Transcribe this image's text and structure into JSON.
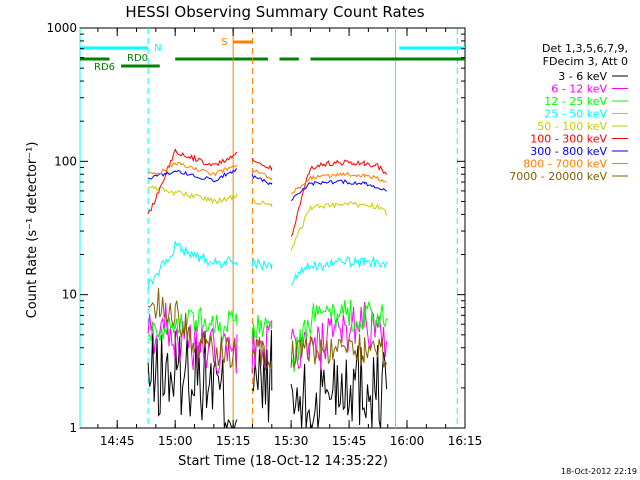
{
  "chart_data": {
    "type": "line",
    "title": "HESSI Observing Summary Count Rates",
    "xlabel": "Start Time (18-Oct-12 14:35:22)",
    "ylabel": "Count Rate (s⁻¹ detector⁻¹)",
    "timestamp": "18-Oct-2012 22:19",
    "yscale": "log",
    "ylim": [
      1,
      1000
    ],
    "xlim": [
      "14:35:22",
      "16:15"
    ],
    "x_ticks": [
      "14:45",
      "15:00",
      "15:15",
      "15:30",
      "15:45",
      "16:00",
      "16:15"
    ],
    "y_ticks": [
      "1",
      "10",
      "100",
      "1000"
    ],
    "legend_header": [
      "Det 1,3,5,6,7,9,",
      "FDecim 3, Att 0"
    ],
    "legend_position": "right",
    "gaps": [
      [
        "14:35:22",
        "14:53"
      ],
      [
        "15:16",
        "15:20"
      ],
      [
        "15:25",
        "15:30"
      ]
    ],
    "series": [
      {
        "name": "3 - 6 keV",
        "color": "#000000",
        "x": [
          "14:53",
          "15:00",
          "15:05",
          "15:10",
          "15:13",
          "15:16",
          "15:25",
          "15:30",
          "15:35",
          "15:40",
          "15:45",
          "15:49",
          "15:52",
          "15:55"
        ],
        "values": [
          2.3,
          2.6,
          2.7,
          2.2,
          1.5,
          1.4,
          2.5,
          1.6,
          1.3,
          2.2,
          2.4,
          2.1,
          2.0,
          2.1
        ]
      },
      {
        "name": "6 - 12 keV",
        "color": "#ff00ff",
        "x": [
          "14:53",
          "14:56",
          "14:58",
          "15:00",
          "15:05",
          "15:10",
          "15:16",
          "15:25",
          "15:30",
          "15:35",
          "15:40",
          "15:45",
          "15:49",
          "15:52",
          "15:55"
        ],
        "values": [
          5.0,
          5.5,
          6.5,
          4.5,
          4.0,
          3.7,
          3.5,
          4.3,
          4.2,
          3.7,
          4.5,
          5.5,
          7.0,
          4.8,
          4.2
        ]
      },
      {
        "name": "12 - 25 keV",
        "color": "#00ff00",
        "x": [
          "14:53",
          "15:00",
          "15:05",
          "15:10",
          "15:16",
          "15:25",
          "15:30",
          "15:35",
          "15:40",
          "15:45",
          "15:49",
          "15:52",
          "15:55"
        ],
        "values": [
          5.2,
          6.3,
          6.5,
          6.0,
          5.8,
          5.8,
          3.0,
          6.5,
          6.8,
          7.0,
          7.0,
          6.8,
          6.5
        ]
      },
      {
        "name": "25 - 50 keV",
        "color": "#00ffff",
        "x": [
          "14:53",
          "15:00",
          "15:05",
          "15:10",
          "15:16",
          "15:25",
          "15:30",
          "15:35",
          "15:40",
          "15:45",
          "15:49",
          "15:52",
          "15:55"
        ],
        "values": [
          11.5,
          23,
          20,
          17,
          18,
          16.5,
          12.5,
          16.5,
          17,
          17.5,
          17.5,
          17.5,
          16.5
        ]
      },
      {
        "name": "50 - 100 keV",
        "color": "#cccc00",
        "x": [
          "14:53",
          "15:00",
          "15:05",
          "15:10",
          "15:16",
          "15:25",
          "15:30",
          "15:35",
          "15:40",
          "15:45",
          "15:49",
          "15:52",
          "15:55"
        ],
        "values": [
          65,
          58,
          55,
          50,
          55,
          46,
          22,
          45,
          47,
          48,
          47,
          46,
          40
        ]
      },
      {
        "name": "100 - 300 keV",
        "color": "#ff0000",
        "x": [
          "14:53",
          "15:00",
          "15:05",
          "15:10",
          "15:16",
          "15:25",
          "15:30",
          "15:35",
          "15:40",
          "15:45",
          "15:49",
          "15:52",
          "15:55"
        ],
        "values": [
          39,
          120,
          105,
          92,
          115,
          88,
          27,
          90,
          97,
          98,
          97,
          94,
          80
        ]
      },
      {
        "name": "300 - 800 keV",
        "color": "#0000ff",
        "x": [
          "14:53",
          "15:00",
          "15:05",
          "15:10",
          "15:16",
          "15:25",
          "15:30",
          "15:35",
          "15:40",
          "15:45",
          "15:49",
          "15:52",
          "15:55"
        ],
        "values": [
          74,
          85,
          78,
          72,
          88,
          67,
          52,
          68,
          70,
          70,
          68,
          65,
          58
        ]
      },
      {
        "name": "800 - 7000 keV",
        "color": "#ff8000",
        "x": [
          "14:53",
          "14:56",
          "15:00",
          "15:05",
          "15:10",
          "15:16",
          "15:25",
          "15:30",
          "15:35",
          "15:40",
          "15:45",
          "15:49",
          "15:52",
          "15:55"
        ],
        "values": [
          80,
          82,
          97,
          88,
          80,
          95,
          75,
          57,
          75,
          78,
          80,
          78,
          76,
          68
        ]
      },
      {
        "name": "7000 - 20000 keV",
        "color": "#806000",
        "x": [
          "14:53",
          "14:56",
          "15:00",
          "15:05",
          "15:10",
          "15:16",
          "15:25",
          "15:30",
          "15:35",
          "15:40",
          "15:45",
          "15:49",
          "15:52",
          "15:55"
        ],
        "values": [
          8.5,
          8.5,
          7.5,
          4.3,
          3.8,
          3.7,
          3.6,
          3.5,
          3.8,
          4.0,
          4.0,
          3.8,
          3.7,
          3.6
        ]
      }
    ],
    "flags": {
      "saa": {
        "label": "S",
        "color": "#ff8000",
        "start": "15:15",
        "end": "15:20"
      },
      "night_label": "N",
      "night_color": "#00ffff",
      "night_segments": [
        [
          "14:35:22",
          "14:53"
        ],
        [
          "15:58",
          "16:15"
        ]
      ],
      "night_markers": [
        "14:53",
        "16:13"
      ],
      "rd0_label": "RD0",
      "rd6_label": "RD6",
      "flag_color": "#008000",
      "rd0_segments": [
        [
          "15:00",
          "15:24"
        ],
        [
          "15:27",
          "15:32"
        ],
        [
          "15:35",
          "16:15"
        ]
      ],
      "rd6_segments": [
        [
          "14:35:22",
          "14:43"
        ],
        [
          "14:46",
          "14:56"
        ]
      ],
      "saa_lines": [
        "15:15",
        "15:20"
      ],
      "orbit_lines": [
        "14:35:22",
        "15:57"
      ]
    }
  }
}
